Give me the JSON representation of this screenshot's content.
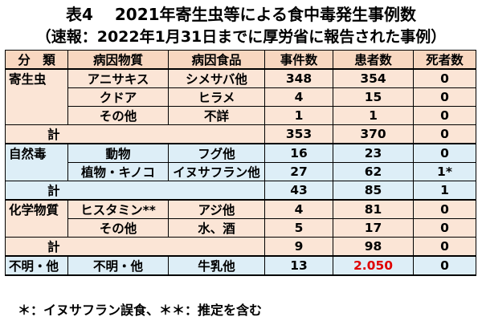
{
  "title_line1": "表4　 2021年寄生虫等による食中毒発生事例数",
  "title_line2": "（速報：2022年1月31日までに厚労省に報告された事例）",
  "headers": [
    "分　類",
    "病因物質",
    "病因食品",
    "事件数",
    "患者数",
    "死者数"
  ],
  "groups": [
    {
      "key": "parasite",
      "label": "寄生虫",
      "rows": [
        {
          "agent": "アニサキス",
          "food": "シメサバ他",
          "cases": "348",
          "patients": "354",
          "deaths": "0"
        },
        {
          "agent": "クドア",
          "food": "ヒラメ",
          "cases": "4",
          "patients": "15",
          "deaths": "0"
        },
        {
          "agent": "その他",
          "food": "不詳",
          "cases": "1",
          "patients": "1",
          "deaths": "0"
        }
      ],
      "total": {
        "label": "計",
        "cases": "353",
        "patients": "370",
        "deaths": "0"
      }
    },
    {
      "key": "natural",
      "label": "自然毒",
      "rows": [
        {
          "agent": "動物",
          "food": "フグ他",
          "cases": "16",
          "patients": "23",
          "deaths": "0"
        },
        {
          "agent": "植物・キノコ",
          "food": "イヌサフラン他",
          "cases": "27",
          "patients": "62",
          "deaths": "1*"
        }
      ],
      "total": {
        "label": "計",
        "cases": "43",
        "patients": "85",
        "deaths": "1"
      }
    },
    {
      "key": "chemical",
      "label": "化学物質",
      "rows": [
        {
          "agent": "ヒスタミン**",
          "food": "アジ他",
          "cases": "4",
          "patients": "81",
          "deaths": "0"
        },
        {
          "agent": "その他",
          "food": "水、酒",
          "cases": "5",
          "patients": "17",
          "deaths": "0"
        }
      ],
      "total": {
        "label": "計",
        "cases": "9",
        "patients": "98",
        "deaths": "0"
      }
    }
  ],
  "unknown": {
    "label": "不明・他",
    "agent": "不明・他",
    "food": "牛乳他",
    "cases": "13",
    "patients": "2.050",
    "deaths": "0"
  },
  "colors": {
    "header_bg": "#f8d7c0",
    "orange_bg": "#fbe5d6",
    "blue_bg": "#ddeef7",
    "highlight_red": "#e00000"
  },
  "footnote": "＊：イヌサフラン誤食、＊＊：推定を含む"
}
